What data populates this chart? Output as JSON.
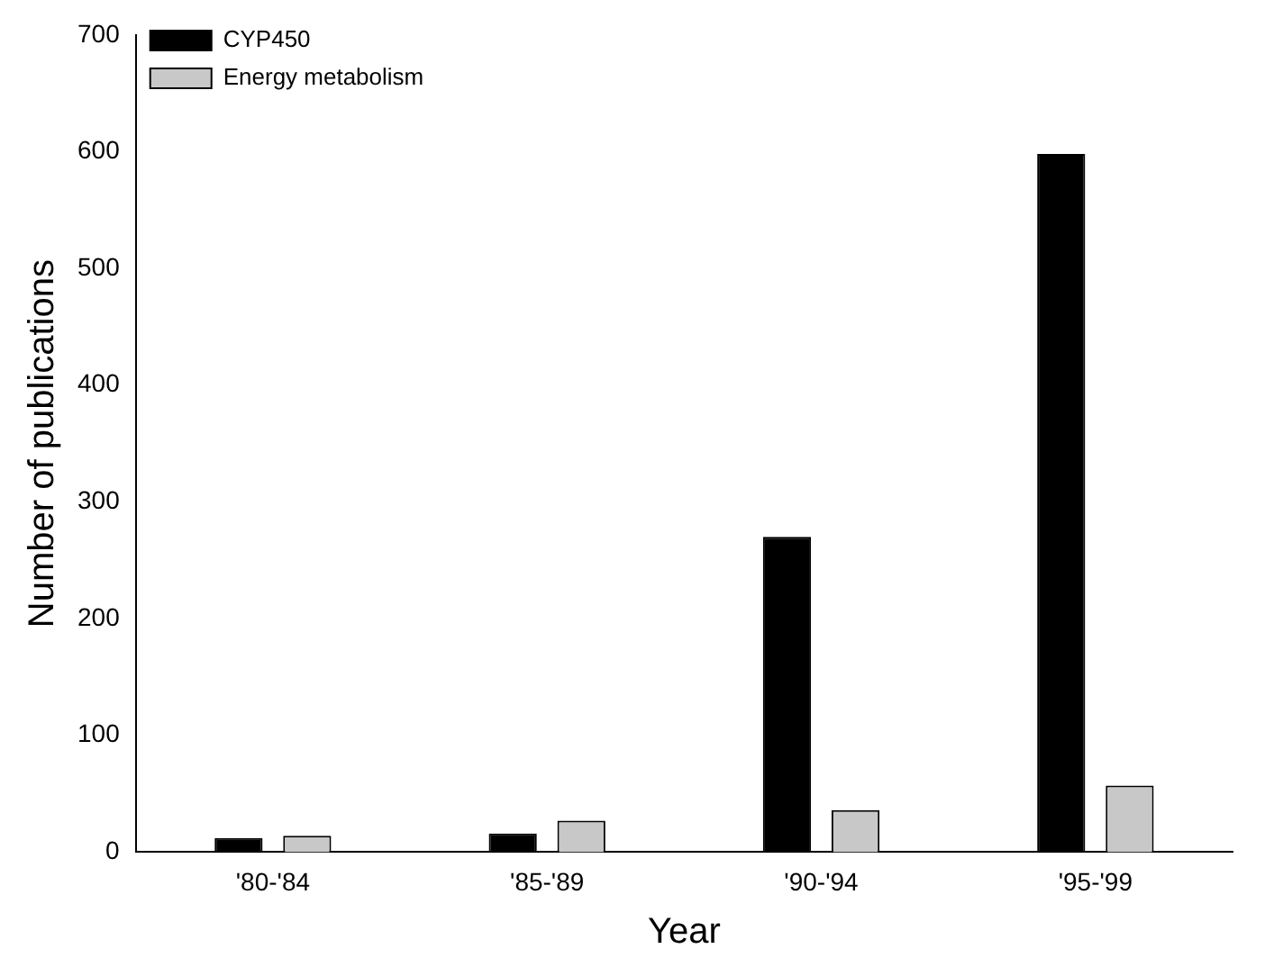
{
  "chart_data": {
    "type": "bar",
    "xlabel": "Year",
    "ylabel": "Number of publications",
    "categories": [
      "'80-'84",
      "'85-'89",
      "'90-'94",
      "'95-'99"
    ],
    "series": [
      {
        "name": "CYP450",
        "color": "#000000",
        "values": [
          12,
          16,
          270,
          598
        ]
      },
      {
        "name": "Energy metabolism",
        "color": "#c8c8c8",
        "values": [
          14,
          27,
          36,
          57
        ]
      }
    ],
    "ylim": [
      0,
      700
    ],
    "yticks": [
      0,
      100,
      200,
      300,
      400,
      500,
      600,
      700
    ],
    "grid": false,
    "legend": "top left"
  }
}
